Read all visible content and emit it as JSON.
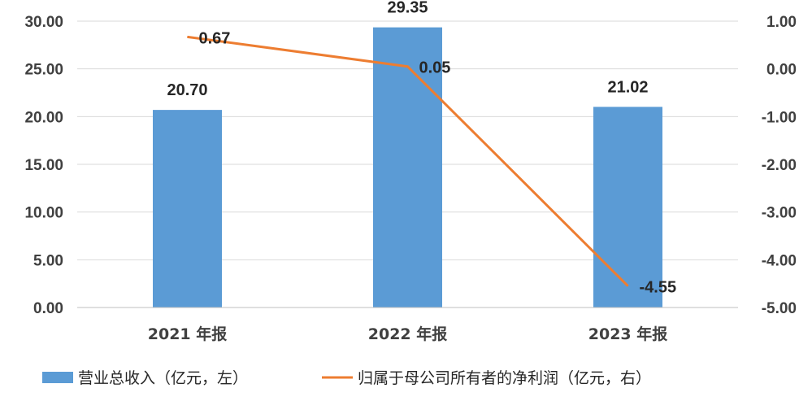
{
  "chart_data": {
    "type": "bar",
    "categories": [
      "2021 年报",
      "2022 年报",
      "2023 年报"
    ],
    "series": [
      {
        "name": "营业总收入（亿元，左）",
        "type": "bar",
        "axis": "left",
        "values": [
          20.7,
          29.35,
          21.02
        ],
        "labels": [
          "20.70",
          "29.35",
          "21.02"
        ],
        "color": "#5B9BD5"
      },
      {
        "name": "归属于母公司所有者的净利润（亿元，右）",
        "type": "line",
        "axis": "right",
        "values": [
          0.67,
          0.05,
          -4.55
        ],
        "labels": [
          "0.67",
          "0.05",
          "-4.55"
        ],
        "color": "#ED7D31"
      }
    ],
    "y_left": {
      "ylim": [
        0,
        30
      ],
      "ticks": [
        "0.00",
        "5.00",
        "10.00",
        "15.00",
        "20.00",
        "25.00",
        "30.00"
      ]
    },
    "y_right": {
      "ylim": [
        -5,
        1
      ],
      "ticks": [
        "-5.00",
        "-4.00",
        "-3.00",
        "-2.00",
        "-1.00",
        "0.00",
        "1.00"
      ]
    },
    "grid": true,
    "legend": "bottom"
  }
}
